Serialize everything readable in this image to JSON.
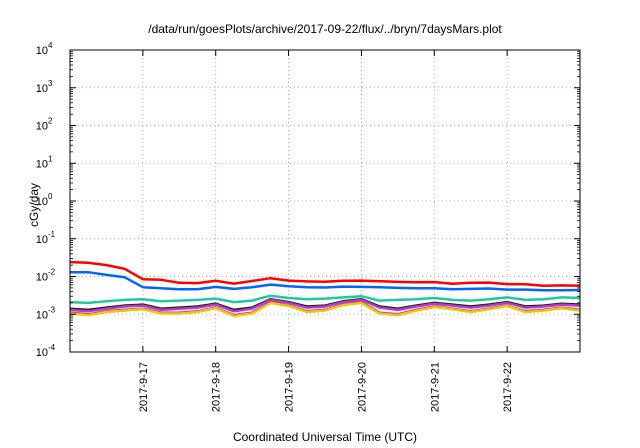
{
  "chart_data": {
    "type": "line",
    "title": "/data/run/goesPlots/archive/2017-09-22/flux/../bryn/7daysMars.plot",
    "xlabel": "Coordinated Universal Time (UTC)",
    "ylabel": "cGy/day",
    "yscale": "log",
    "ylim": [
      0.0001,
      10000
    ],
    "y_ticks": [
      {
        "value": 0.0001,
        "base": "10",
        "exp": "-4"
      },
      {
        "value": 0.001,
        "base": "10",
        "exp": "-3"
      },
      {
        "value": 0.01,
        "base": "10",
        "exp": "-2"
      },
      {
        "value": 0.1,
        "base": "10",
        "exp": "-1"
      },
      {
        "value": 1,
        "base": "10",
        "exp": "0"
      },
      {
        "value": 10,
        "base": "10",
        "exp": "1"
      },
      {
        "value": 100,
        "base": "10",
        "exp": "2"
      },
      {
        "value": 1000,
        "base": "10",
        "exp": "3"
      },
      {
        "value": 10000,
        "base": "10",
        "exp": "4"
      }
    ],
    "xlim": [
      "2017-09-16T00:00Z",
      "2017-09-23T00:00Z"
    ],
    "x_ticks": [
      {
        "date": "2017-09-17T00:00Z",
        "label": "2017-9-17"
      },
      {
        "date": "2017-09-18T00:00Z",
        "label": "2017-9-18"
      },
      {
        "date": "2017-09-19T00:00Z",
        "label": "2017-9-19"
      },
      {
        "date": "2017-09-20T00:00Z",
        "label": "2017-9-20"
      },
      {
        "date": "2017-09-21T00:00Z",
        "label": "2017-9-21"
      },
      {
        "date": "2017-09-22T00:00Z",
        "label": "2017-9-22"
      }
    ],
    "grid": true,
    "series": [
      {
        "color": "#ff0000",
        "x": [
          "2017-09-16T00:00Z",
          "2017-09-16T06:00Z",
          "2017-09-16T12:00Z",
          "2017-09-16T18:00Z",
          "2017-09-17T00:00Z",
          "2017-09-17T06:00Z",
          "2017-09-17T12:00Z",
          "2017-09-17T18:00Z",
          "2017-09-18T00:00Z",
          "2017-09-18T06:00Z",
          "2017-09-18T12:00Z",
          "2017-09-18T18:00Z",
          "2017-09-19T00:00Z",
          "2017-09-19T06:00Z",
          "2017-09-19T12:00Z",
          "2017-09-19T18:00Z",
          "2017-09-20T00:00Z",
          "2017-09-20T06:00Z",
          "2017-09-20T12:00Z",
          "2017-09-20T18:00Z",
          "2017-09-21T00:00Z",
          "2017-09-21T06:00Z",
          "2017-09-21T12:00Z",
          "2017-09-21T18:00Z",
          "2017-09-22T00:00Z",
          "2017-09-22T06:00Z",
          "2017-09-22T12:00Z",
          "2017-09-22T18:00Z",
          "2017-09-23T00:00Z"
        ],
        "y": [
          0.024,
          0.023,
          0.02,
          0.016,
          0.0085,
          0.0082,
          0.0068,
          0.0067,
          0.0077,
          0.0065,
          0.0076,
          0.009,
          0.0078,
          0.0074,
          0.0073,
          0.0077,
          0.0078,
          0.0075,
          0.0072,
          0.007,
          0.0071,
          0.0064,
          0.0068,
          0.0069,
          0.0063,
          0.0062,
          0.0057,
          0.0058,
          0.0057
        ]
      },
      {
        "color": "#0066ff",
        "x": [
          "2017-09-16T00:00Z",
          "2017-09-16T06:00Z",
          "2017-09-16T12:00Z",
          "2017-09-16T18:00Z",
          "2017-09-17T00:00Z",
          "2017-09-17T06:00Z",
          "2017-09-17T12:00Z",
          "2017-09-17T18:00Z",
          "2017-09-18T00:00Z",
          "2017-09-18T06:00Z",
          "2017-09-18T12:00Z",
          "2017-09-18T18:00Z",
          "2017-09-19T00:00Z",
          "2017-09-19T06:00Z",
          "2017-09-19T12:00Z",
          "2017-09-19T18:00Z",
          "2017-09-20T00:00Z",
          "2017-09-20T06:00Z",
          "2017-09-20T12:00Z",
          "2017-09-20T18:00Z",
          "2017-09-21T00:00Z",
          "2017-09-21T06:00Z",
          "2017-09-21T12:00Z",
          "2017-09-21T18:00Z",
          "2017-09-22T00:00Z",
          "2017-09-22T06:00Z",
          "2017-09-22T12:00Z",
          "2017-09-22T18:00Z",
          "2017-09-23T00:00Z"
        ],
        "y": [
          0.013,
          0.013,
          0.011,
          0.0095,
          0.0052,
          0.0049,
          0.0046,
          0.0046,
          0.0053,
          0.0047,
          0.0052,
          0.0061,
          0.0055,
          0.0052,
          0.0051,
          0.0054,
          0.0053,
          0.0052,
          0.005,
          0.0049,
          0.0049,
          0.0046,
          0.0047,
          0.0048,
          0.0045,
          0.0045,
          0.0043,
          0.0043,
          0.0044
        ]
      },
      {
        "color": "#22c7a0",
        "x": [
          "2017-09-16T00:00Z",
          "2017-09-16T06:00Z",
          "2017-09-16T12:00Z",
          "2017-09-16T18:00Z",
          "2017-09-17T00:00Z",
          "2017-09-17T06:00Z",
          "2017-09-17T12:00Z",
          "2017-09-17T18:00Z",
          "2017-09-18T00:00Z",
          "2017-09-18T06:00Z",
          "2017-09-18T12:00Z",
          "2017-09-18T18:00Z",
          "2017-09-19T00:00Z",
          "2017-09-19T06:00Z",
          "2017-09-19T12:00Z",
          "2017-09-19T18:00Z",
          "2017-09-20T00:00Z",
          "2017-09-20T06:00Z",
          "2017-09-20T12:00Z",
          "2017-09-20T18:00Z",
          "2017-09-21T00:00Z",
          "2017-09-21T06:00Z",
          "2017-09-21T12:00Z",
          "2017-09-21T18:00Z",
          "2017-09-22T00:00Z",
          "2017-09-22T06:00Z",
          "2017-09-22T12:00Z",
          "2017-09-22T18:00Z",
          "2017-09-23T00:00Z"
        ],
        "y": [
          0.0021,
          0.002,
          0.0022,
          0.0024,
          0.0025,
          0.0022,
          0.0023,
          0.0024,
          0.0026,
          0.0021,
          0.0023,
          0.0031,
          0.0027,
          0.0025,
          0.0026,
          0.0028,
          0.003,
          0.0023,
          0.0024,
          0.0025,
          0.0027,
          0.0024,
          0.0023,
          0.0025,
          0.0028,
          0.0024,
          0.0025,
          0.0028,
          0.0027
        ]
      },
      {
        "color": "#1a1a1a",
        "x": [
          "2017-09-16T00:00Z",
          "2017-09-16T06:00Z",
          "2017-09-16T12:00Z",
          "2017-09-16T18:00Z",
          "2017-09-17T00:00Z",
          "2017-09-17T06:00Z",
          "2017-09-17T12:00Z",
          "2017-09-17T18:00Z",
          "2017-09-18T00:00Z",
          "2017-09-18T06:00Z",
          "2017-09-18T12:00Z",
          "2017-09-18T18:00Z",
          "2017-09-19T00:00Z",
          "2017-09-19T06:00Z",
          "2017-09-19T12:00Z",
          "2017-09-19T18:00Z",
          "2017-09-20T00:00Z",
          "2017-09-20T06:00Z",
          "2017-09-20T12:00Z",
          "2017-09-20T18:00Z",
          "2017-09-21T00:00Z",
          "2017-09-21T06:00Z",
          "2017-09-21T12:00Z",
          "2017-09-21T18:00Z",
          "2017-09-22T00:00Z",
          "2017-09-22T06:00Z",
          "2017-09-22T12:00Z",
          "2017-09-22T18:00Z",
          "2017-09-23T00:00Z"
        ],
        "y": [
          0.0014,
          0.0013,
          0.0015,
          0.0017,
          0.0018,
          0.0014,
          0.0015,
          0.0016,
          0.0019,
          0.0013,
          0.0015,
          0.0025,
          0.0021,
          0.0016,
          0.0017,
          0.0022,
          0.0025,
          0.0016,
          0.0014,
          0.0017,
          0.002,
          0.0018,
          0.0016,
          0.0018,
          0.0021,
          0.0016,
          0.0017,
          0.0019,
          0.0018
        ]
      },
      {
        "color": "#b040c0",
        "x": [
          "2017-09-16T00:00Z",
          "2017-09-16T06:00Z",
          "2017-09-16T12:00Z",
          "2017-09-16T18:00Z",
          "2017-09-17T00:00Z",
          "2017-09-17T06:00Z",
          "2017-09-17T12:00Z",
          "2017-09-17T18:00Z",
          "2017-09-18T00:00Z",
          "2017-09-18T06:00Z",
          "2017-09-18T12:00Z",
          "2017-09-18T18:00Z",
          "2017-09-19T00:00Z",
          "2017-09-19T06:00Z",
          "2017-09-19T12:00Z",
          "2017-09-19T18:00Z",
          "2017-09-20T00:00Z",
          "2017-09-20T06:00Z",
          "2017-09-20T12:00Z",
          "2017-09-20T18:00Z",
          "2017-09-21T00:00Z",
          "2017-09-21T06:00Z",
          "2017-09-21T12:00Z",
          "2017-09-21T18:00Z",
          "2017-09-22T00:00Z",
          "2017-09-22T06:00Z",
          "2017-09-22T12:00Z",
          "2017-09-22T18:00Z",
          "2017-09-23T00:00Z"
        ],
        "y": [
          0.0013,
          0.0012,
          0.0014,
          0.0016,
          0.0017,
          0.0013,
          0.0014,
          0.0015,
          0.0018,
          0.0012,
          0.0014,
          0.0024,
          0.002,
          0.0015,
          0.0016,
          0.0021,
          0.0024,
          0.0015,
          0.0013,
          0.0016,
          0.0019,
          0.0017,
          0.0015,
          0.0017,
          0.002,
          0.0015,
          0.0016,
          0.0018,
          0.0017
        ]
      },
      {
        "color": "#ff00d0",
        "x": [
          "2017-09-16T00:00Z",
          "2017-09-16T06:00Z",
          "2017-09-16T12:00Z",
          "2017-09-16T18:00Z",
          "2017-09-17T00:00Z",
          "2017-09-17T06:00Z",
          "2017-09-17T12:00Z",
          "2017-09-17T18:00Z",
          "2017-09-18T00:00Z",
          "2017-09-18T06:00Z",
          "2017-09-18T12:00Z",
          "2017-09-18T18:00Z",
          "2017-09-19T00:00Z",
          "2017-09-19T06:00Z",
          "2017-09-19T12:00Z",
          "2017-09-19T18:00Z",
          "2017-09-20T00:00Z",
          "2017-09-20T06:00Z",
          "2017-09-20T12:00Z",
          "2017-09-20T18:00Z",
          "2017-09-21T00:00Z",
          "2017-09-21T06:00Z",
          "2017-09-21T12:00Z",
          "2017-09-21T18:00Z",
          "2017-09-22T00:00Z",
          "2017-09-22T06:00Z",
          "2017-09-22T12:00Z",
          "2017-09-22T18:00Z",
          "2017-09-23T00:00Z"
        ],
        "y": [
          0.0011,
          0.001,
          0.0012,
          0.0013,
          0.0014,
          0.0011,
          0.0011,
          0.0012,
          0.0015,
          0.00095,
          0.0011,
          0.0021,
          0.0017,
          0.0012,
          0.0013,
          0.0018,
          0.0021,
          0.0011,
          0.001,
          0.0013,
          0.0016,
          0.0014,
          0.0012,
          0.0014,
          0.0017,
          0.0012,
          0.0013,
          0.0015,
          0.0013
        ]
      },
      {
        "color": "#e0d000",
        "x": [
          "2017-09-16T00:00Z",
          "2017-09-16T06:00Z",
          "2017-09-16T12:00Z",
          "2017-09-16T18:00Z",
          "2017-09-17T00:00Z",
          "2017-09-17T06:00Z",
          "2017-09-17T12:00Z",
          "2017-09-17T18:00Z",
          "2017-09-18T00:00Z",
          "2017-09-18T06:00Z",
          "2017-09-18T12:00Z",
          "2017-09-18T18:00Z",
          "2017-09-19T00:00Z",
          "2017-09-19T06:00Z",
          "2017-09-19T12:00Z",
          "2017-09-19T18:00Z",
          "2017-09-20T00:00Z",
          "2017-09-20T06:00Z",
          "2017-09-20T12:00Z",
          "2017-09-20T18:00Z",
          "2017-09-21T00:00Z",
          "2017-09-21T06:00Z",
          "2017-09-21T12:00Z",
          "2017-09-21T18:00Z",
          "2017-09-22T00:00Z",
          "2017-09-22T06:00Z",
          "2017-09-22T12:00Z",
          "2017-09-22T18:00Z",
          "2017-09-23T00:00Z"
        ],
        "y": [
          0.00105,
          0.00095,
          0.00115,
          0.00125,
          0.00135,
          0.00105,
          0.00105,
          0.00115,
          0.00145,
          0.0009,
          0.00105,
          0.002,
          0.00165,
          0.00115,
          0.00125,
          0.00175,
          0.002,
          0.00105,
          0.00095,
          0.00125,
          0.00155,
          0.00135,
          0.00115,
          0.00135,
          0.00165,
          0.00115,
          0.00125,
          0.00145,
          0.00125
        ]
      }
    ]
  }
}
